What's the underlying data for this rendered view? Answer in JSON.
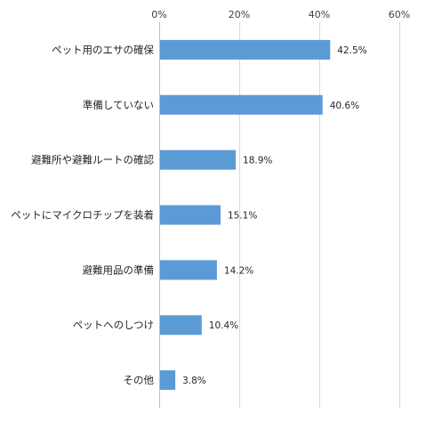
{
  "chart_data": {
    "type": "bar",
    "orientation": "horizontal",
    "title": "",
    "xlabel": "",
    "ylabel": "",
    "categories": [
      "ペット用のエサの確保",
      "準備していない",
      "避難所や避難ルートの確認",
      "ペットにマイクロチップを装着",
      "避難用品の準備",
      "ペットへのしつけ",
      "その他"
    ],
    "values": [
      42.5,
      40.6,
      18.9,
      15.1,
      14.2,
      10.4,
      3.8
    ],
    "data_labels": [
      "42.5%",
      "40.6%",
      "18.9%",
      "15.1%",
      "14.2%",
      "10.4%",
      "3.8%"
    ],
    "xlim": [
      0,
      60
    ],
    "x_ticks": [
      0,
      20,
      40,
      60
    ],
    "x_tick_labels": [
      "0%",
      "20%",
      "40%",
      "60%"
    ],
    "x_axis_position": "top",
    "grid": true,
    "legend": "none",
    "colors": {
      "bar": "#5b9bd5",
      "grid": "#d9d9d9",
      "axis": "#bfbfbf"
    }
  }
}
